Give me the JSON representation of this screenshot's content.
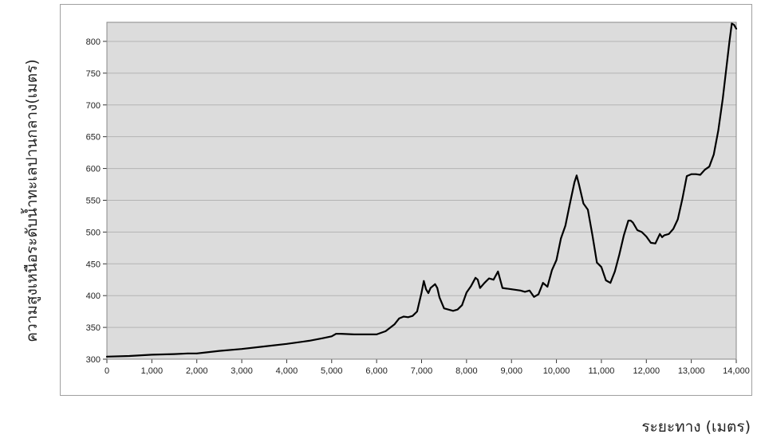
{
  "chart_data": {
    "type": "line",
    "xlabel": "ระยะทาง (เมตร)",
    "ylabel": "ความสูงเหนือระดับน้ำทะเลปานกลาง(เมตร)",
    "xlim": [
      0,
      14000
    ],
    "ylim": [
      300,
      830
    ],
    "xticks": [
      0,
      1000,
      2000,
      3000,
      4000,
      5000,
      6000,
      7000,
      8000,
      9000,
      10000,
      11000,
      12000,
      13000,
      14000
    ],
    "xtick_labels": [
      "0",
      "1,000",
      "2,000",
      "3,000",
      "4,000",
      "5,000",
      "6,000",
      "7,000",
      "8,000",
      "9,000",
      "10,000",
      "11,000",
      "12,000",
      "13,000",
      "14,000"
    ],
    "yticks": [
      300,
      350,
      400,
      450,
      500,
      550,
      600,
      650,
      700,
      750,
      800
    ],
    "ytick_labels": [
      "300",
      "350",
      "400",
      "450",
      "500",
      "550",
      "600",
      "650",
      "700",
      "750",
      "800"
    ],
    "grid": true,
    "background_color": "#dcdcdc",
    "line_color": "#000000",
    "series": [
      {
        "x": [
          0,
          500,
          1000,
          1500,
          1800,
          2000,
          2500,
          3000,
          3500,
          4000,
          4500,
          4800,
          5000,
          5100,
          5200,
          5500,
          6000,
          6200,
          6400,
          6500,
          6600,
          6700,
          6800,
          6900,
          7000,
          7050,
          7100,
          7150,
          7200,
          7300,
          7350,
          7400,
          7500,
          7700,
          7800,
          7900,
          8000,
          8100,
          8200,
          8250,
          8300,
          8400,
          8500,
          8600,
          8700,
          8800,
          9000,
          9200,
          9300,
          9400,
          9500,
          9600,
          9700,
          9800,
          9900,
          10000,
          10100,
          10200,
          10300,
          10400,
          10450,
          10500,
          10600,
          10700,
          10800,
          10900,
          11000,
          11100,
          11200,
          11300,
          11400,
          11500,
          11600,
          11650,
          11700,
          11800,
          11900,
          12000,
          12100,
          12200,
          12300,
          12350,
          12400,
          12500,
          12600,
          12700,
          12800,
          12900,
          13000,
          13100,
          13200,
          13300,
          13400,
          13500,
          13600,
          13700,
          13800,
          13850,
          13900,
          13950,
          14000
        ],
        "y": [
          304,
          305,
          307,
          308,
          309,
          309,
          313,
          316,
          320,
          324,
          329,
          333,
          336,
          340,
          340,
          339,
          339,
          344,
          355,
          364,
          367,
          366,
          368,
          375,
          405,
          423,
          410,
          404,
          412,
          418,
          412,
          397,
          380,
          376,
          378,
          385,
          405,
          415,
          428,
          425,
          412,
          420,
          427,
          425,
          438,
          412,
          410,
          408,
          406,
          408,
          398,
          402,
          420,
          414,
          440,
          456,
          490,
          510,
          545,
          578,
          589,
          575,
          545,
          535,
          495,
          452,
          445,
          424,
          420,
          438,
          465,
          495,
          518,
          518,
          515,
          503,
          500,
          493,
          483,
          482,
          497,
          492,
          495,
          497,
          505,
          520,
          552,
          588,
          591,
          591,
          590,
          598,
          603,
          622,
          660,
          710,
          770,
          800,
          828,
          826,
          820
        ]
      }
    ]
  }
}
